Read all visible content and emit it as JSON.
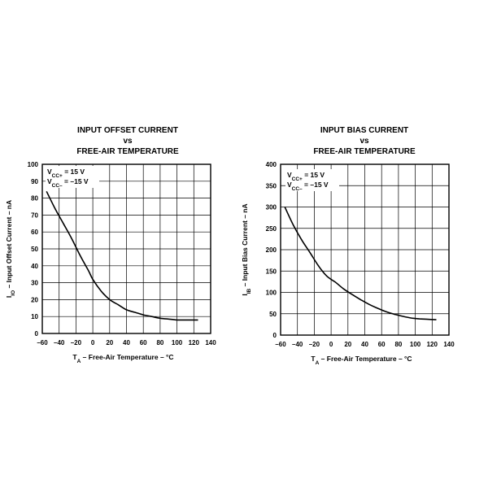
{
  "chart_data": [
    {
      "type": "line",
      "title_line1": "INPUT OFFSET CURRENT",
      "title_line2": "vs",
      "title_line3": "FREE-AIR TEMPERATURE",
      "ylabel_main": "I",
      "ylabel_sub": "IO",
      "ylabel_rest": " – Input Offset Current – nA",
      "xlabel_main": "T",
      "xlabel_sub": "A",
      "xlabel_rest": " – Free-Air Temperature – °C",
      "annotation_1_main": "V",
      "annotation_1_sub": "CC+",
      "annotation_1_rest": " = 15 V",
      "annotation_2_main": "V",
      "annotation_2_sub": "CC–",
      "annotation_2_rest": " = –15 V",
      "xlim": [
        -60,
        140
      ],
      "ylim": [
        0,
        100
      ],
      "x_ticks": [
        -60,
        -40,
        -20,
        0,
        20,
        40,
        60,
        80,
        100,
        120,
        140
      ],
      "x_tick_labels": [
        "–60",
        "–40",
        "–20",
        "0",
        "20",
        "40",
        "60",
        "80",
        "100",
        "120",
        "140"
      ],
      "y_ticks": [
        0,
        10,
        20,
        30,
        40,
        50,
        60,
        70,
        80,
        90,
        100
      ],
      "y_tick_labels": [
        "0",
        "10",
        "20",
        "30",
        "40",
        "50",
        "60",
        "70",
        "80",
        "90",
        "100"
      ],
      "grid": true,
      "series": [
        {
          "x": [
            -55,
            -45,
            -35,
            -25,
            -15,
            -5,
            0,
            10,
            20,
            30,
            40,
            50,
            60,
            70,
            80,
            90,
            100,
            110,
            125
          ],
          "y": [
            84,
            74,
            65,
            56,
            46,
            37,
            32,
            25,
            20,
            17,
            14,
            12.5,
            11,
            10,
            9,
            8.5,
            8,
            8,
            8
          ]
        }
      ]
    },
    {
      "type": "line",
      "title_line1": "INPUT BIAS CURRENT",
      "title_line2": "vs",
      "title_line3": "FREE-AIR TEMPERATURE",
      "ylabel_main": "I",
      "ylabel_sub": "IB",
      "ylabel_rest": " – Input Bias Current – nA",
      "xlabel_main": "T",
      "xlabel_sub": "A",
      "xlabel_rest": " – Free-Air Temperature – °C",
      "annotation_1_main": "V",
      "annotation_1_sub": "CC+",
      "annotation_1_rest": " = 15 V",
      "annotation_2_main": "V",
      "annotation_2_sub": "CC–",
      "annotation_2_rest": " = –15 V",
      "xlim": [
        -60,
        140
      ],
      "ylim": [
        0,
        400
      ],
      "x_ticks": [
        -60,
        -40,
        -20,
        0,
        20,
        40,
        60,
        80,
        100,
        120,
        140
      ],
      "x_tick_labels": [
        "–60",
        "–40",
        "–20",
        "0",
        "20",
        "40",
        "60",
        "80",
        "100",
        "120",
        "140"
      ],
      "y_ticks": [
        0,
        50,
        100,
        150,
        200,
        250,
        300,
        350,
        400
      ],
      "y_tick_labels": [
        "0",
        "50",
        "100",
        "150",
        "200",
        "250",
        "300",
        "350",
        "400"
      ],
      "grid": true,
      "series": [
        {
          "x": [
            -55,
            -45,
            -35,
            -25,
            -15,
            -5,
            5,
            15,
            25,
            35,
            45,
            55,
            65,
            75,
            85,
            95,
            105,
            115,
            125
          ],
          "y": [
            300,
            258,
            223,
            193,
            162,
            138,
            124,
            108,
            95,
            83,
            72,
            63,
            55,
            49,
            44,
            40,
            38,
            37,
            36
          ]
        }
      ]
    }
  ]
}
